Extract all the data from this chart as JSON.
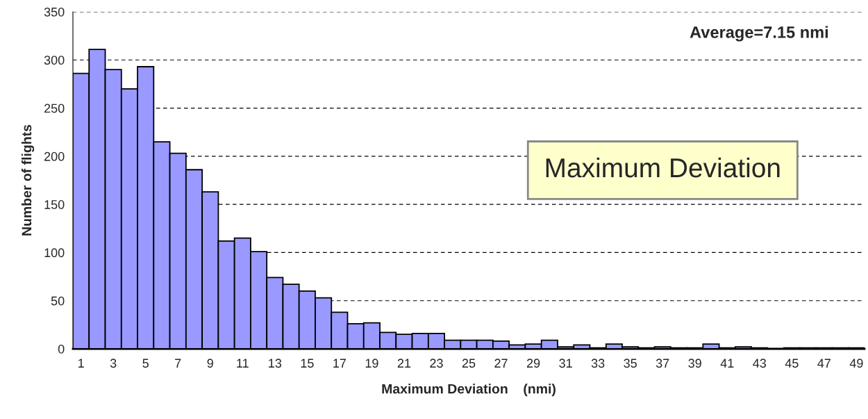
{
  "chart_data": {
    "type": "bar",
    "xlabel": "Maximum Deviation    (nmi)",
    "ylabel": "Number of flights",
    "categories": [
      "1",
      null,
      "3",
      null,
      "5",
      null,
      "7",
      null,
      "9",
      null,
      "11",
      null,
      "13",
      null,
      "15",
      null,
      "17",
      null,
      "19",
      null,
      "21",
      null,
      "23",
      null,
      "25",
      null,
      "27",
      null,
      "29",
      null,
      "31",
      null,
      "33",
      null,
      "35",
      null,
      "37",
      null,
      "39",
      null,
      "41",
      null,
      "43",
      null,
      "45",
      null,
      "47",
      null,
      "49"
    ],
    "values": [
      286,
      311,
      290,
      270,
      293,
      215,
      203,
      186,
      163,
      112,
      115,
      101,
      74,
      67,
      60,
      53,
      38,
      26,
      27,
      17,
      15,
      16,
      16,
      9,
      9,
      9,
      8,
      4,
      5,
      9,
      2,
      4,
      1,
      5,
      2,
      1,
      2,
      1,
      1,
      5,
      1,
      2,
      1,
      null,
      1,
      1,
      1,
      1,
      1
    ],
    "color": "#9999ff",
    "ylim": [
      0,
      350
    ],
    "yticks": [
      0,
      50,
      100,
      150,
      200,
      250,
      300,
      350
    ],
    "grid": "y",
    "line_style": "dashed",
    "annotations": [
      "Average=7.15 nmi",
      "Maximum Deviation"
    ]
  }
}
